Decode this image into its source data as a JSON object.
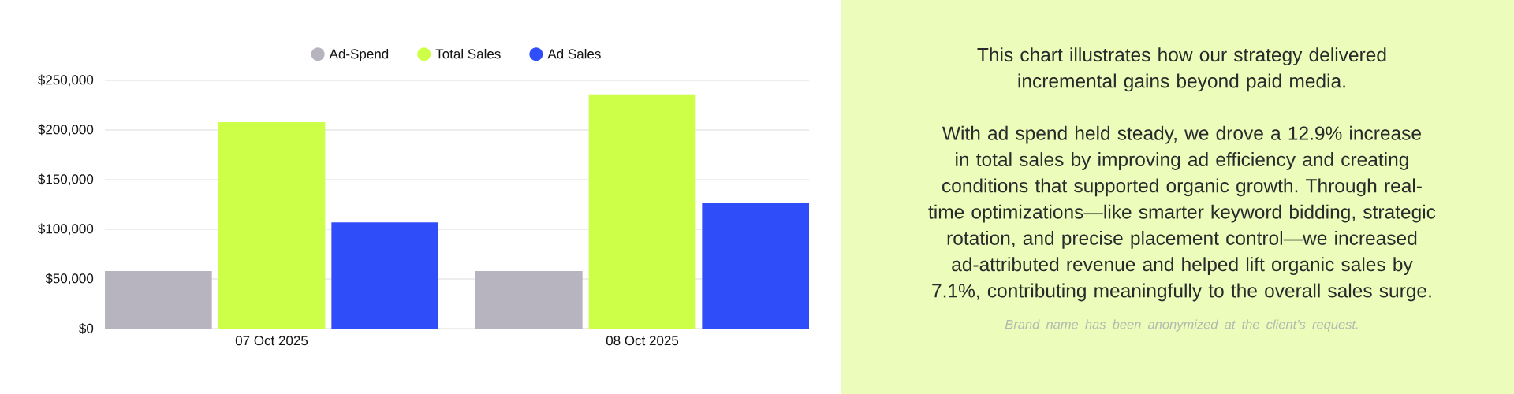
{
  "chart_data": [
    {
      "type": "bar",
      "categories": [
        "07 Oct 2025",
        "08 Oct 2025"
      ],
      "series": [
        {
          "name": "Ad-Spend",
          "color": "#b7b4c0",
          "values": [
            58000,
            58000
          ]
        },
        {
          "name": "Total Sales",
          "color": "#cdfe48",
          "values": [
            208000,
            236000
          ]
        },
        {
          "name": "Ad Sales",
          "color": "#2f4ef9",
          "values": [
            107000,
            127000
          ]
        }
      ],
      "ylim": [
        0,
        250000
      ],
      "yticks": [
        {
          "value": 0,
          "label": "$0"
        },
        {
          "value": 50000,
          "label": "$50,000"
        },
        {
          "value": 100000,
          "label": "$100,000"
        },
        {
          "value": 150000,
          "label": "$150,000"
        },
        {
          "value": 200000,
          "label": "$200,000"
        },
        {
          "value": 250000,
          "label": "$250,000"
        }
      ],
      "grid": "y",
      "legend": "top"
    },
    {
      "type": "other",
      "annotations": [
        "This chart illustrates how our strategy delivered incremental gains beyond paid media.",
        "With ad spend held steady, we drove a 12.9% increase in total sales by improving ad efficiency and creating conditions that supported organic growth. Through real-time optimizations—like smarter keyword bidding, strategic rotation, and precise placement control—we increased ad-attributed revenue and helped lift organic sales by 7.1%, contributing meaningfully to the overall sales surge.",
        "Brand name has been anonymized at the client’s request."
      ]
    }
  ]
}
